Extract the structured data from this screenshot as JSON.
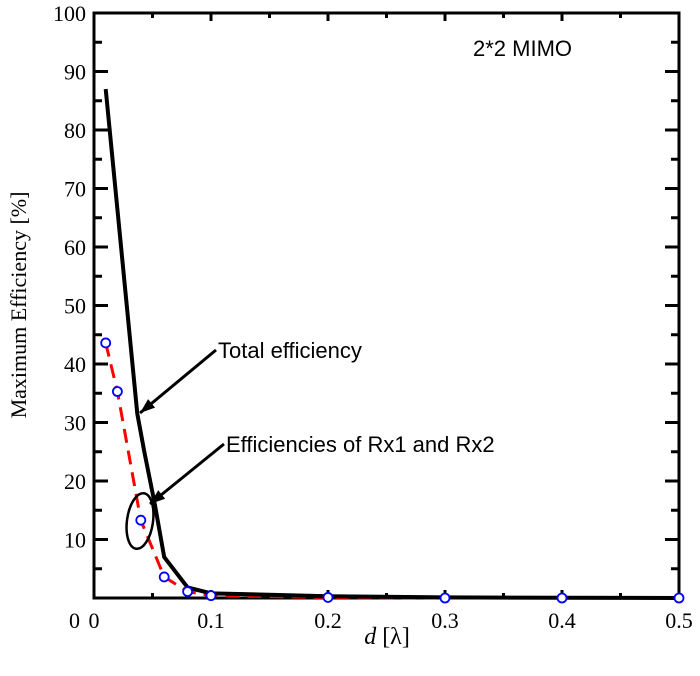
{
  "chart_data": {
    "type": "line",
    "xlabel": "d [λ]",
    "xlabel_italic": "d",
    "xlabel_unit": "[λ]",
    "ylabel": "Maximum Efficiency [%]",
    "xlim": [
      0,
      0.5
    ],
    "ylim": [
      0,
      100
    ],
    "xticks": [
      "0",
      "0.1",
      "0.2",
      "0.3",
      "0.4",
      "0.5"
    ],
    "yticks": [
      "0",
      "10",
      "20",
      "30",
      "40",
      "50",
      "60",
      "70",
      "80",
      "90",
      "100"
    ],
    "grid": false,
    "series": [
      {
        "name": "Total efficiency",
        "style": "solid",
        "color": "#000000",
        "x": [
          0.01,
          0.037,
          0.043,
          0.052,
          0.06,
          0.08,
          0.1,
          0.2,
          0.3,
          0.4,
          0.5
        ],
        "y": [
          87,
          31.5,
          25,
          16,
          7,
          1.8,
          0.8,
          0.3,
          0.1,
          0.05,
          0
        ]
      },
      {
        "name": "Efficiencies of Rx1 and Rx2",
        "style": "dashed",
        "color": "#ff0000",
        "marker_color": "#0000ff",
        "x": [
          0.01,
          0.02,
          0.04,
          0.06,
          0.08,
          0.1,
          0.2,
          0.3,
          0.4,
          0.5
        ],
        "y": [
          43.6,
          35.3,
          13.3,
          3.6,
          1.1,
          0.4,
          0.1,
          0,
          0,
          0
        ]
      }
    ],
    "annotations": [
      "2*2 MIMO",
      "Total efficiency",
      "Efficiencies of Rx1 and Rx2"
    ]
  }
}
